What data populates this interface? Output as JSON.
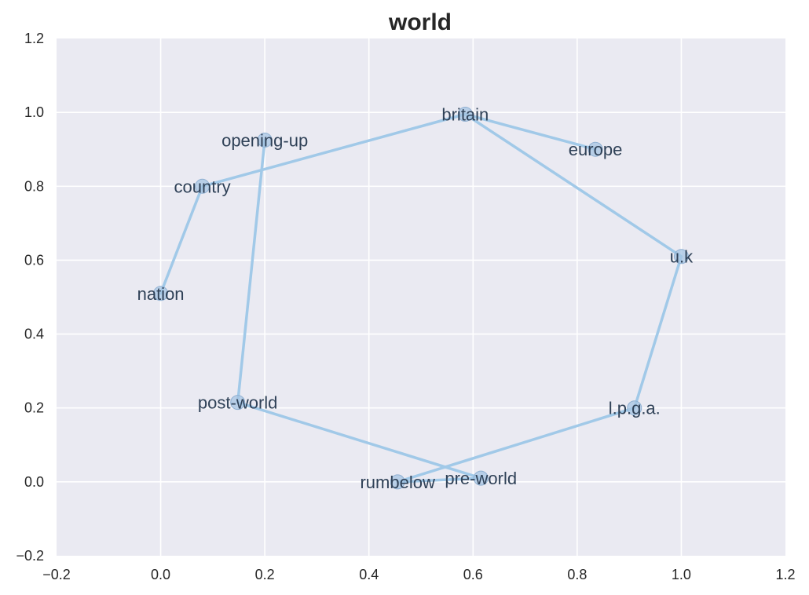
{
  "chart_data": {
    "type": "scatter",
    "title": "world",
    "xlabel": "",
    "ylabel": "",
    "xlim": [
      -0.2,
      1.2
    ],
    "ylim": [
      -0.2,
      1.2
    ],
    "x_ticks": [
      "−0.2",
      "0.0",
      "0.2",
      "0.4",
      "0.6",
      "0.8",
      "1.0",
      "1.2"
    ],
    "y_ticks": [
      "−0.2",
      "0.0",
      "0.2",
      "0.4",
      "0.6",
      "0.8",
      "1.0",
      "1.2"
    ],
    "grid": true,
    "legend": "none",
    "colors": {
      "background": "#eaeaf2",
      "line": "#a1c9e8",
      "marker_fill": "#a6c4e3",
      "marker_edge": "#8fb0d2",
      "label_text": "#2f4157"
    },
    "points": [
      {
        "label": "nation",
        "x": 0.0,
        "y": 0.51
      },
      {
        "label": "country",
        "x": 0.08,
        "y": 0.8
      },
      {
        "label": "britain",
        "x": 0.585,
        "y": 0.995
      },
      {
        "label": "europe",
        "x": 0.835,
        "y": 0.9
      },
      {
        "label": "u.k",
        "x": 1.0,
        "y": 0.61
      },
      {
        "label": "l.p.g.a.",
        "x": 0.91,
        "y": 0.2
      },
      {
        "label": "rumbelow",
        "x": 0.455,
        "y": 0.0
      },
      {
        "label": "pre-world",
        "x": 0.615,
        "y": 0.01
      },
      {
        "label": "post-world",
        "x": 0.148,
        "y": 0.215
      },
      {
        "label": "opening-up",
        "x": 0.2,
        "y": 0.925
      }
    ],
    "path_order": [
      "nation",
      "country",
      "britain",
      "europe",
      "britain",
      "u.k",
      "l.p.g.a.",
      "rumbelow",
      "pre-world",
      "post-world",
      "opening-up"
    ]
  }
}
